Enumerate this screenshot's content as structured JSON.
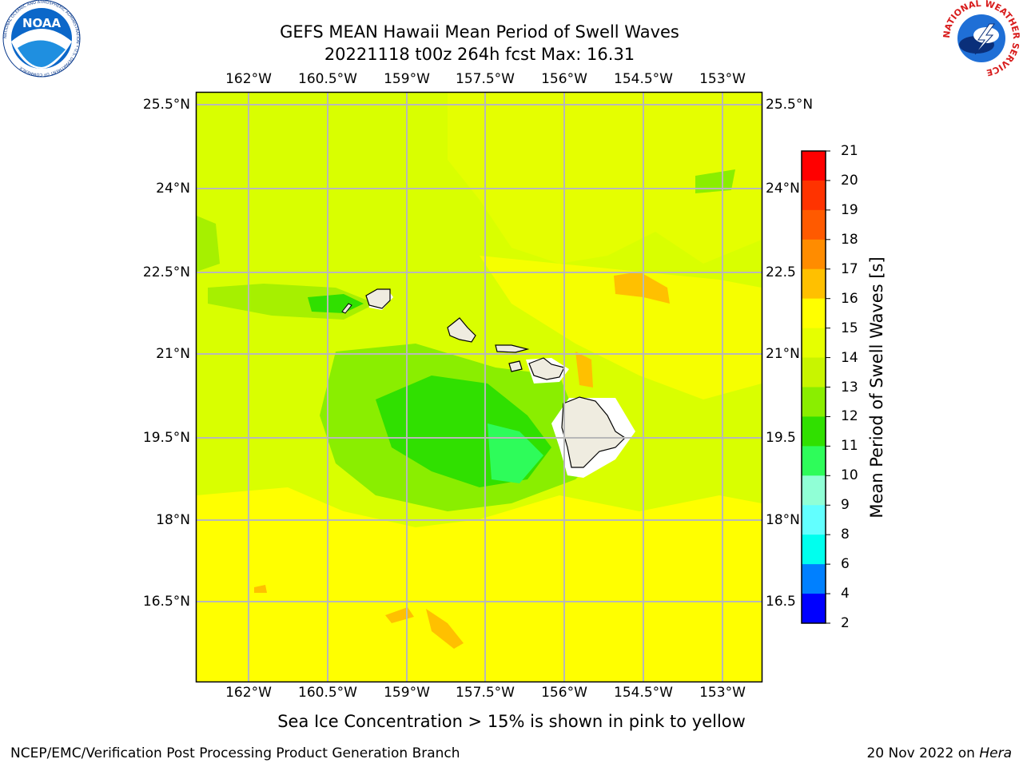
{
  "header": {
    "title_line1": "GEFS MEAN Hawaii Mean Period of Swell Waves",
    "title_line2": "20221118 t00z 264h fcst   Max: 16.31"
  },
  "logos": {
    "left": "NOAA",
    "left_ring_text": "NATIONAL OCEANIC AND ATMOSPHERIC ADMINISTRATION • U.S. DEPARTMENT OF COMMERCE",
    "right_ring_text": "NATIONAL WEATHER SERVICE"
  },
  "map": {
    "lon_ticks": [
      "162°W",
      "160.5°W",
      "159°W",
      "157.5°W",
      "156°W",
      "154.5°W",
      "153°W"
    ],
    "lat_ticks": [
      "25.5°N",
      "24°N",
      "22.5°N",
      "21°N",
      "19.5°N",
      "18°N",
      "16.5°N"
    ],
    "right_lat_ticks": [
      "25.5°N",
      "24°N",
      "22.5",
      "21°N",
      "19.5",
      "18°N",
      "16.5"
    ],
    "grid": true,
    "dominant_period_s": "14-15",
    "feature": "Hawaiian Islands"
  },
  "colorbar": {
    "label": "Mean Period of Swell Waves [s]",
    "ticks": [
      "21",
      "20",
      "19",
      "18",
      "17",
      "16",
      "15",
      "14",
      "13",
      "12",
      "11",
      "10",
      "9",
      "8",
      "6",
      "4",
      "2"
    ],
    "colors": [
      "#ff0000",
      "#ff3300",
      "#ff5a00",
      "#ff8c00",
      "#ffc000",
      "#ffff00",
      "#e6ff00",
      "#c8f500",
      "#8aee00",
      "#30e000",
      "#2efc5a",
      "#90ffd6",
      "#62ffff",
      "#00ffee",
      "#0080ff",
      "#0000ff"
    ]
  },
  "subtitle": "Sea Ice Concentration > 15% is shown in pink to yellow",
  "footer": {
    "left": "NCEP/EMC/Verification Post Processing Product Generation Branch",
    "right_prefix": "20 Nov 2022 on ",
    "right_host": "Hera"
  }
}
